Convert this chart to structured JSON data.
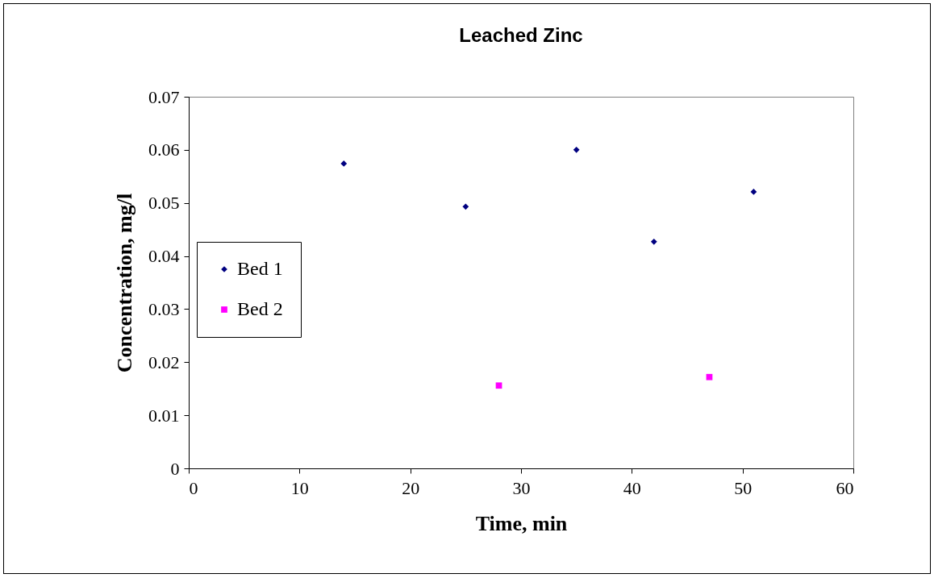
{
  "chart_data": {
    "type": "scatter",
    "title": "Leached Zinc",
    "xlabel": "Time, min",
    "ylabel": "Concentration, mg/l",
    "xlim": [
      0,
      60
    ],
    "xticks": [
      0,
      10,
      20,
      30,
      40,
      50,
      60
    ],
    "ylim": [
      0,
      0.07
    ],
    "yticks": [
      0,
      0.01,
      0.02,
      0.03,
      0.04,
      0.05,
      0.06,
      0.07
    ],
    "grid": false,
    "legend": "left",
    "series": [
      {
        "name": "Bed 1",
        "color": "#000080",
        "marker": "diamond",
        "x": [
          14,
          25,
          35,
          42,
          51
        ],
        "values": [
          0.0574,
          0.0493,
          0.06,
          0.0427,
          0.0521
        ]
      },
      {
        "name": "Bed 2",
        "color": "#ff00ff",
        "marker": "square",
        "x": [
          28,
          47
        ],
        "values": [
          0.0156,
          0.0172
        ]
      }
    ]
  }
}
